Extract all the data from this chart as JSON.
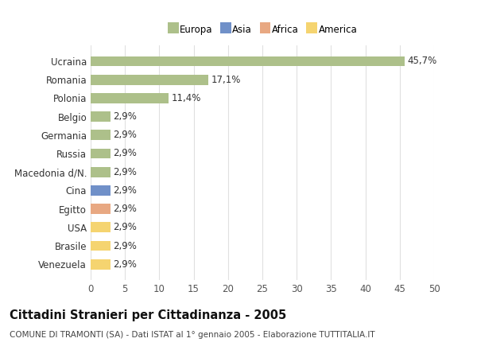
{
  "categories": [
    "Venezuela",
    "Brasile",
    "USA",
    "Egitto",
    "Cina",
    "Macedonia d/N.",
    "Russia",
    "Germania",
    "Belgio",
    "Polonia",
    "Romania",
    "Ucraina"
  ],
  "values": [
    2.9,
    2.9,
    2.9,
    2.9,
    2.9,
    2.9,
    2.9,
    2.9,
    2.9,
    11.4,
    17.1,
    45.7
  ],
  "labels": [
    "2,9%",
    "2,9%",
    "2,9%",
    "2,9%",
    "2,9%",
    "2,9%",
    "2,9%",
    "2,9%",
    "2,9%",
    "11,4%",
    "17,1%",
    "45,7%"
  ],
  "colors": [
    "#f5d470",
    "#f5d470",
    "#f5d470",
    "#e8a882",
    "#7090c8",
    "#adc08a",
    "#adc08a",
    "#adc08a",
    "#adc08a",
    "#adc08a",
    "#adc08a",
    "#adc08a"
  ],
  "legend_labels": [
    "Europa",
    "Asia",
    "Africa",
    "America"
  ],
  "legend_colors": [
    "#adc08a",
    "#7090c8",
    "#e8a882",
    "#f5d470"
  ],
  "title": "Cittadini Stranieri per Cittadinanza - 2005",
  "subtitle": "COMUNE DI TRAMONTI (SA) - Dati ISTAT al 1° gennaio 2005 - Elaborazione TUTTITALIA.IT",
  "xlim": [
    0,
    50
  ],
  "xticks": [
    0,
    5,
    10,
    15,
    20,
    25,
    30,
    35,
    40,
    45,
    50
  ],
  "background_color": "#ffffff",
  "grid_color": "#e0e0e0",
  "bar_height": 0.55,
  "label_fontsize": 8.5,
  "tick_fontsize": 8.5,
  "title_fontsize": 10.5,
  "subtitle_fontsize": 7.5
}
